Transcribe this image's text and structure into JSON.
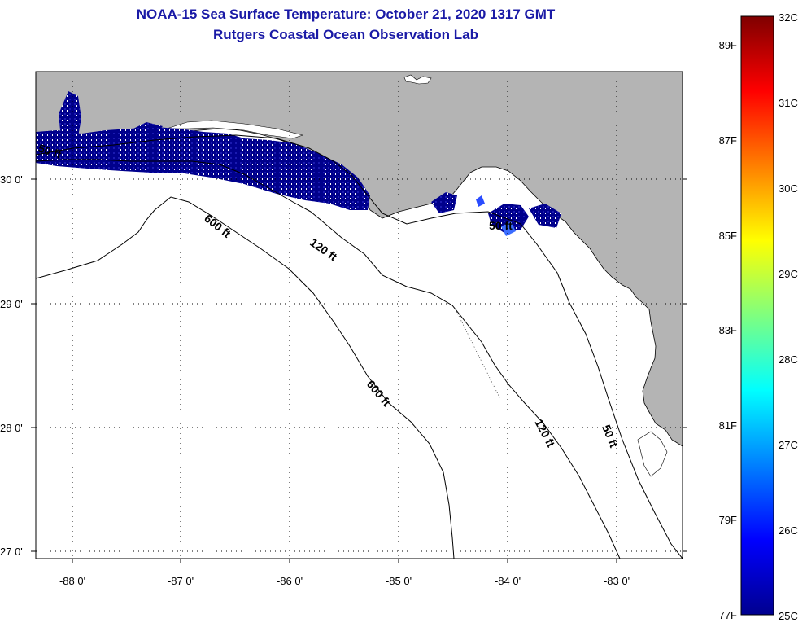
{
  "title": {
    "line1": "NOAA-15 Sea Surface Temperature:  October 21, 2020 1317 GMT",
    "line2": "Rutgers Coastal Ocean Observation Lab"
  },
  "map": {
    "lat_labels": [
      "30 0'",
      "29 0'",
      "28 0'",
      "27 0'"
    ],
    "lon_labels": [
      "-88 0'",
      "-87 0'",
      "-86 0'",
      "-85 0'",
      "-84 0'",
      "-83 0'"
    ],
    "contour_labels": [
      "600 ft",
      "120 ft",
      "600 ft",
      "120 ft",
      "50 ft",
      "50 ft",
      "50 ft"
    ],
    "land_color": "#b4b4b4",
    "sst_color": "#00008c"
  },
  "colorbar": {
    "celsius": [
      "32C",
      "31C",
      "30C",
      "29C",
      "28C",
      "27C",
      "26C",
      "25C"
    ],
    "fahrenheit": [
      "89F",
      "87F",
      "85F",
      "83F",
      "81F",
      "79F",
      "77F"
    ]
  }
}
